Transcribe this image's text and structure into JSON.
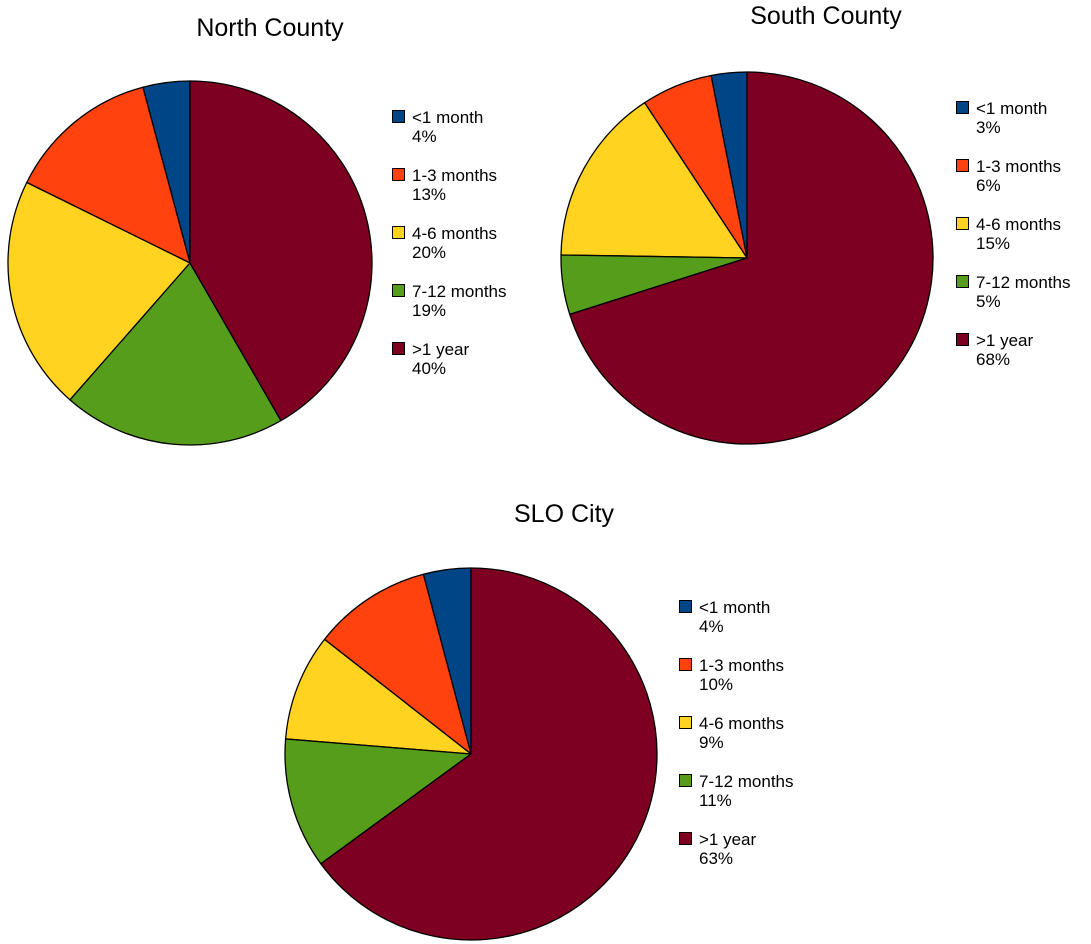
{
  "chart_data": [
    {
      "type": "pie",
      "title": "North County",
      "slices": [
        {
          "label": "<1 month",
          "value": 4,
          "value_label": "4%",
          "color": "#004586"
        },
        {
          "label": "1-3 months",
          "value": 13,
          "value_label": "13%",
          "color": "#ff420e"
        },
        {
          "label": "4-6 months",
          "value": 20,
          "value_label": "20%",
          "color": "#ffd320"
        },
        {
          "label": "7-12 months",
          "value": 19,
          "value_label": "19%",
          "color": "#579d1c"
        },
        {
          "label": ">1 year",
          "value": 40,
          "value_label": "40%",
          "color": "#7e0021"
        }
      ],
      "legend_position": "right"
    },
    {
      "type": "pie",
      "title": "South County",
      "slices": [
        {
          "label": "<1 month",
          "value": 3,
          "value_label": "3%",
          "color": "#004586"
        },
        {
          "label": "1-3 months",
          "value": 6,
          "value_label": "6%",
          "color": "#ff420e"
        },
        {
          "label": "4-6 months",
          "value": 15,
          "value_label": "15%",
          "color": "#ffd320"
        },
        {
          "label": "7-12 months",
          "value": 5,
          "value_label": "5%",
          "color": "#579d1c"
        },
        {
          "label": ">1 year",
          "value": 68,
          "value_label": "68%",
          "color": "#7e0021"
        }
      ],
      "legend_position": "right"
    },
    {
      "type": "pie",
      "title": "SLO City",
      "slices": [
        {
          "label": "<1 month",
          "value": 4,
          "value_label": "4%",
          "color": "#004586"
        },
        {
          "label": "1-3 months",
          "value": 10,
          "value_label": "10%",
          "color": "#ff420e"
        },
        {
          "label": "4-6 months",
          "value": 9,
          "value_label": "9%",
          "color": "#ffd320"
        },
        {
          "label": "7-12 months",
          "value": 11,
          "value_label": "11%",
          "color": "#579d1c"
        },
        {
          "label": ">1 year",
          "value": 63,
          "value_label": "63%",
          "color": "#7e0021"
        }
      ],
      "legend_position": "right"
    }
  ]
}
